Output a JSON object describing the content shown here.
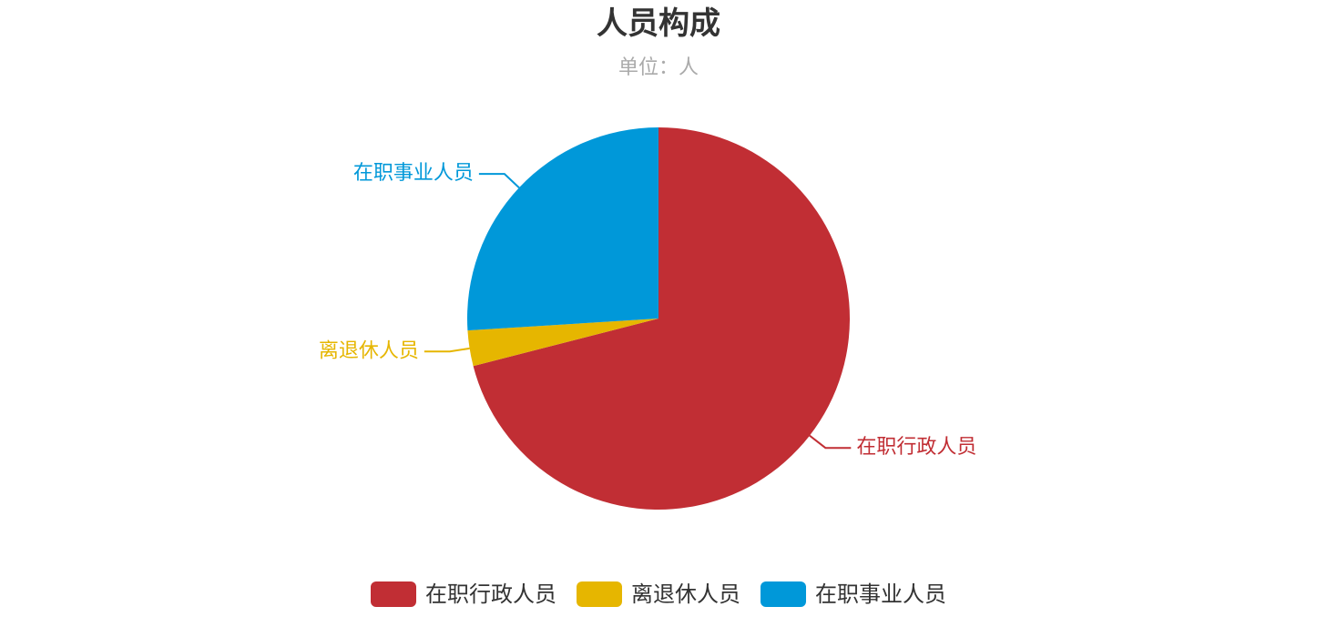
{
  "chart_data": {
    "type": "pie",
    "title": "人员构成",
    "subtitle": "单位：人",
    "categories": [
      "在职行政人员",
      "离退休人员",
      "在职事业人员"
    ],
    "values": [
      71,
      3,
      26
    ],
    "colors": [
      "#c12e34",
      "#e6b600",
      "#0098d9"
    ],
    "legend_position": "bottom-center"
  }
}
